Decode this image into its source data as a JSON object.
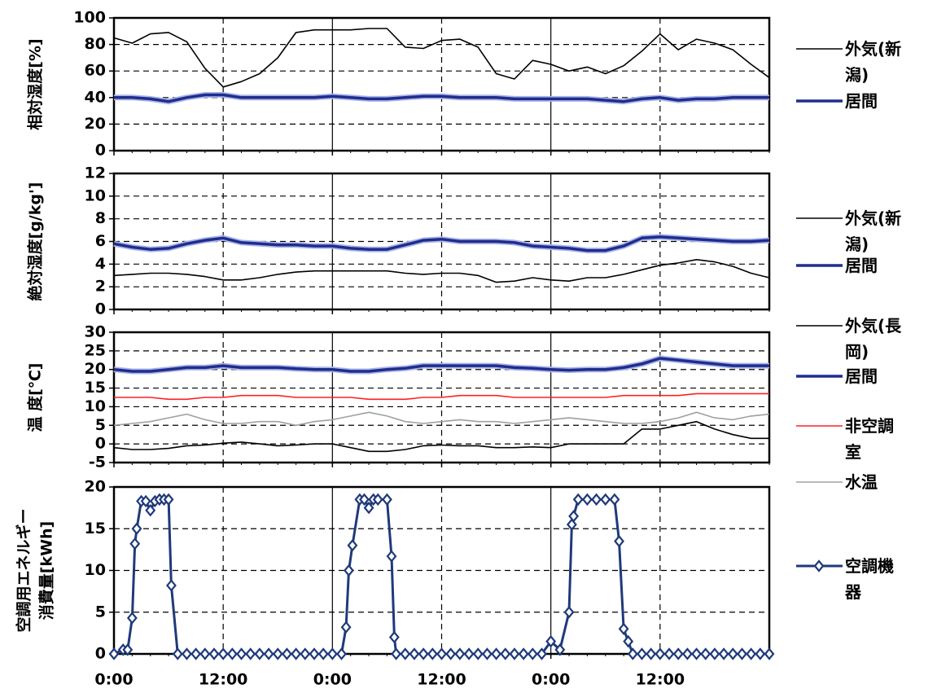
{
  "chart_data": [
    {
      "type": "line",
      "ylabel": "相対湿度[%]",
      "xlim": [
        0,
        72
      ],
      "xticks": [
        0,
        12,
        24,
        36,
        48,
        60
      ],
      "ylim": [
        0,
        100
      ],
      "yticks": [
        0,
        20,
        40,
        60,
        80,
        100
      ],
      "grid": true,
      "x": [
        0,
        2,
        4,
        6,
        8,
        10,
        12,
        14,
        16,
        18,
        20,
        22,
        24,
        26,
        28,
        30,
        32,
        34,
        36,
        38,
        40,
        42,
        44,
        46,
        48,
        50,
        52,
        54,
        56,
        58,
        60,
        62,
        64,
        66,
        68,
        70,
        72
      ],
      "series": [
        {
          "name": "外気(新潟)",
          "color": "#000000",
          "values": [
            85,
            81,
            88,
            89,
            82,
            62,
            48,
            52,
            58,
            70,
            89,
            91,
            91,
            91,
            92,
            92,
            78,
            77,
            83,
            84,
            78,
            58,
            54,
            68,
            65,
            60,
            63,
            58,
            64,
            75,
            88,
            76,
            84,
            81,
            76,
            65,
            55
          ]
        },
        {
          "name": "居間",
          "color": "#1f2d8f",
          "values": [
            40,
            40,
            39,
            37,
            40,
            42,
            42,
            40,
            40,
            40,
            40,
            40,
            41,
            40,
            39,
            39,
            40,
            41,
            41,
            40,
            40,
            40,
            39,
            39,
            39,
            39,
            39,
            38,
            37,
            39,
            40,
            38,
            39,
            39,
            40,
            40,
            40
          ]
        }
      ]
    },
    {
      "type": "line",
      "ylabel": "絶対湿度[g/kg']",
      "xlim": [
        0,
        72
      ],
      "xticks": [
        0,
        12,
        24,
        36,
        48,
        60
      ],
      "ylim": [
        0,
        12
      ],
      "yticks": [
        0,
        2,
        4,
        6,
        8,
        10,
        12
      ],
      "grid": true,
      "x": [
        0,
        2,
        4,
        6,
        8,
        10,
        12,
        14,
        16,
        18,
        20,
        22,
        24,
        26,
        28,
        30,
        32,
        34,
        36,
        38,
        40,
        42,
        44,
        46,
        48,
        50,
        52,
        54,
        56,
        58,
        60,
        62,
        64,
        66,
        68,
        70,
        72
      ],
      "series": [
        {
          "name": "外気(新潟)",
          "color": "#000000",
          "values": [
            3.0,
            3.1,
            3.2,
            3.2,
            3.1,
            2.9,
            2.6,
            2.6,
            2.8,
            3.1,
            3.3,
            3.4,
            3.4,
            3.4,
            3.4,
            3.4,
            3.2,
            3.1,
            3.2,
            3.2,
            3.0,
            2.4,
            2.5,
            2.8,
            2.6,
            2.5,
            2.8,
            2.8,
            3.1,
            3.5,
            3.9,
            4.1,
            4.4,
            4.2,
            3.8,
            3.2,
            2.8
          ]
        },
        {
          "name": "居間",
          "color": "#1f2d8f",
          "values": [
            5.8,
            5.5,
            5.3,
            5.4,
            5.8,
            6.1,
            6.3,
            5.9,
            5.8,
            5.7,
            5.7,
            5.6,
            5.6,
            5.4,
            5.3,
            5.3,
            5.7,
            6.1,
            6.2,
            6.0,
            6.0,
            6.0,
            5.9,
            5.6,
            5.5,
            5.4,
            5.2,
            5.2,
            5.6,
            6.3,
            6.4,
            6.3,
            6.2,
            6.1,
            6.0,
            6.0,
            6.1
          ]
        }
      ]
    },
    {
      "type": "line",
      "ylabel": "温 度[℃]",
      "xlim": [
        0,
        72
      ],
      "xticks": [
        0,
        12,
        24,
        36,
        48,
        60
      ],
      "ylim": [
        -5,
        30
      ],
      "yticks": [
        -5,
        0,
        5,
        10,
        15,
        20,
        25,
        30
      ],
      "grid": true,
      "x": [
        0,
        2,
        4,
        6,
        8,
        10,
        12,
        14,
        16,
        18,
        20,
        22,
        24,
        26,
        28,
        30,
        32,
        34,
        36,
        38,
        40,
        42,
        44,
        46,
        48,
        50,
        52,
        54,
        56,
        58,
        60,
        62,
        64,
        66,
        68,
        70,
        72
      ],
      "series": [
        {
          "name": "外気(長岡)",
          "color": "#000000",
          "values": [
            -1,
            -1.5,
            -1.5,
            -1.2,
            -0.5,
            -0.3,
            0.2,
            0.5,
            0,
            -0.5,
            -0.3,
            0,
            0,
            -1,
            -2,
            -2,
            -1.5,
            -0.5,
            -0.3,
            -0.5,
            -0.5,
            -1,
            -1,
            -0.8,
            -1,
            0,
            0,
            0,
            0,
            4,
            4,
            5,
            6,
            4,
            2.5,
            1.5,
            1.5
          ]
        },
        {
          "name": "居間",
          "color": "#1f2d8f",
          "values": [
            20,
            19.5,
            19.5,
            20,
            20.5,
            20.5,
            21,
            20.5,
            20.5,
            20.5,
            20.2,
            20,
            20,
            19.5,
            19.5,
            20,
            20.3,
            21,
            21,
            21,
            21,
            21,
            20.5,
            20.3,
            20,
            19.8,
            20,
            20,
            20.5,
            21.5,
            23,
            22.5,
            22,
            21.5,
            21,
            21,
            21
          ]
        },
        {
          "name": "非空調室",
          "color": "#ff2020",
          "values": [
            12.5,
            12.5,
            12.5,
            12,
            12,
            12.5,
            12.5,
            13,
            13,
            13,
            12.5,
            12.5,
            12.5,
            12.5,
            12,
            12,
            12,
            12.5,
            12.5,
            13,
            13,
            13,
            12.5,
            12.5,
            12.5,
            12.5,
            12.5,
            12.5,
            13,
            13,
            13,
            13,
            13.5,
            13.5,
            13.5,
            13.5,
            13.5
          ]
        },
        {
          "name": "水温",
          "color": "#a0a0a0",
          "values": [
            5,
            5.5,
            6,
            7,
            8,
            6.5,
            5.5,
            5.5,
            6,
            6,
            5,
            6,
            6.5,
            7.5,
            8.5,
            7.5,
            6,
            5.5,
            6,
            6.5,
            6,
            6,
            5.5,
            6,
            6.5,
            7,
            6.5,
            6,
            5.5,
            5.5,
            6,
            7,
            8.5,
            7,
            6.5,
            7.5,
            8
          ]
        }
      ]
    },
    {
      "type": "line",
      "ylabel": [
        "空調用エネルギー",
        "消費量[kWh]"
      ],
      "xlim": [
        0,
        72
      ],
      "xticks": [
        {
          "value": 0,
          "label": "0:00"
        },
        {
          "value": 12,
          "label": "12:00"
        },
        {
          "value": 24,
          "label": "0:00"
        },
        {
          "value": 36,
          "label": "12:00"
        },
        {
          "value": 48,
          "label": "0:00"
        },
        {
          "value": 60,
          "label": "12:00"
        }
      ],
      "ylim": [
        0,
        20
      ],
      "yticks": [
        0,
        5,
        10,
        15,
        20
      ],
      "grid": true,
      "marker": "diamond",
      "x": [
        0,
        1,
        1.5,
        2,
        2.3,
        2.5,
        3,
        3.5,
        4,
        4.5,
        5,
        5.5,
        6,
        6.3,
        7,
        8,
        9,
        10,
        11,
        12,
        13,
        14,
        15,
        16,
        17,
        18,
        19,
        20,
        21,
        22,
        23,
        24,
        25,
        25.5,
        25.8,
        26.2,
        27,
        27.5,
        28,
        28.5,
        29,
        30,
        30.5,
        30.8,
        31,
        32,
        33,
        34,
        35,
        36,
        37,
        38,
        39,
        40,
        41,
        42,
        43,
        44,
        45,
        46,
        47,
        48,
        49,
        50,
        50.3,
        50.5,
        51,
        52,
        53,
        54,
        55,
        55.5,
        56,
        56.5,
        57,
        58,
        59,
        60,
        61,
        62,
        63,
        64,
        65,
        66,
        67,
        68,
        69,
        70,
        71,
        72
      ],
      "series": [
        {
          "name": "空調機器",
          "color": "#1f3a7a",
          "values": [
            0,
            0.5,
            0.5,
            4.3,
            13.2,
            15,
            18.3,
            18.3,
            17.2,
            18.3,
            18.5,
            18.5,
            18.5,
            8.2,
            0,
            0,
            0,
            0,
            0,
            0,
            0,
            0,
            0,
            0,
            0,
            0,
            0,
            0,
            0,
            0,
            0,
            0,
            0,
            3.2,
            10,
            13,
            18.5,
            18.5,
            17.5,
            18.5,
            18.5,
            18.5,
            11.7,
            2,
            0,
            0,
            0,
            0,
            0,
            0,
            0,
            0,
            0,
            0,
            0,
            0,
            0,
            0,
            0,
            0,
            0,
            1.5,
            0.5,
            5,
            15.5,
            16.5,
            18.5,
            18.5,
            18.5,
            18.5,
            18.5,
            13.5,
            3,
            1.5,
            0,
            0,
            0,
            0,
            0,
            0,
            0,
            0,
            0,
            0,
            0,
            0,
            0,
            0,
            0,
            0
          ]
        }
      ]
    }
  ]
}
